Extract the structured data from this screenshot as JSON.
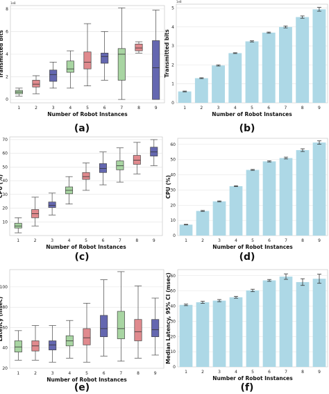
{
  "chart_data": [
    {
      "panel": "(a)",
      "type": "box",
      "xlabel": "Number of Robot Instances",
      "ylabel": "Transmitted bits",
      "y_scale_note": "1e8",
      "ylim": [
        -0.3,
        8.3
      ],
      "yticks": [
        0,
        2,
        4,
        6,
        8
      ],
      "categories": [
        "1",
        "2",
        "3",
        "4",
        "5",
        "6",
        "7",
        "8",
        "9"
      ],
      "colors": [
        "#a8d5a2",
        "#e08a8e",
        "#6467b0",
        "#a8d5a2",
        "#e08a8e",
        "#6467b0",
        "#a8d5a2",
        "#e08a8e",
        "#6467b0"
      ],
      "boxes": [
        {
          "min": 0.3,
          "q1": 0.5,
          "median": 0.65,
          "q3": 0.8,
          "max": 1.0
        },
        {
          "min": 0.5,
          "q1": 1.1,
          "median": 1.35,
          "q3": 1.7,
          "max": 2.1
        },
        {
          "min": 1.0,
          "q1": 1.6,
          "median": 2.2,
          "q3": 2.6,
          "max": 3.3
        },
        {
          "min": 1.0,
          "q1": 2.4,
          "median": 2.7,
          "q3": 3.4,
          "max": 4.3
        },
        {
          "min": 1.2,
          "q1": 2.7,
          "median": 3.3,
          "q3": 4.2,
          "max": 6.7
        },
        {
          "min": 1.7,
          "q1": 3.2,
          "median": 3.8,
          "q3": 4.1,
          "max": 6.0
        },
        {
          "min": 0.0,
          "q1": 1.7,
          "median": 4.0,
          "q3": 4.5,
          "max": 8.1
        },
        {
          "min": 4.1,
          "q1": 4.3,
          "median": 4.55,
          "q3": 4.9,
          "max": 5.1
        },
        {
          "min": 0.0,
          "q1": 0.0,
          "median": 2.8,
          "q3": 5.2,
          "max": 7.9
        }
      ]
    },
    {
      "panel": "(b)",
      "type": "bar",
      "xlabel": "Number of Robot Instances",
      "ylabel": "Transmitted bits",
      "y_scale_note": "1e8",
      "ylim": [
        0,
        5.2
      ],
      "yticks": [
        0,
        1,
        2,
        3,
        4,
        5
      ],
      "categories": [
        "1",
        "2",
        "3",
        "4",
        "5",
        "6",
        "7",
        "8",
        "9"
      ],
      "values": [
        0.6,
        1.3,
        1.97,
        2.62,
        3.24,
        3.7,
        4.0,
        4.52,
        4.93
      ],
      "errors": [
        0.02,
        0.02,
        0.03,
        0.02,
        0.03,
        0.03,
        0.05,
        0.06,
        0.1
      ],
      "bar_color": "#add8e6"
    },
    {
      "panel": "(c)",
      "type": "box",
      "xlabel": "Number of Robot Instances",
      "ylabel": "CPU (%)",
      "ylim": [
        0,
        72
      ],
      "yticks": [
        10,
        20,
        30,
        40,
        50,
        60,
        70
      ],
      "categories": [
        "1",
        "2",
        "3",
        "4",
        "5",
        "6",
        "7",
        "8",
        "9"
      ],
      "colors": [
        "#a8d5a2",
        "#e08a8e",
        "#6467b0",
        "#a8d5a2",
        "#e08a8e",
        "#6467b0",
        "#a8d5a2",
        "#e08a8e",
        "#6467b0"
      ],
      "boxes": [
        {
          "min": 2,
          "q1": 5.5,
          "median": 7,
          "q3": 9,
          "max": 13
        },
        {
          "min": 7,
          "q1": 13,
          "median": 16,
          "q3": 19,
          "max": 28
        },
        {
          "min": 15,
          "q1": 20.5,
          "median": 22,
          "q3": 24.5,
          "max": 31
        },
        {
          "min": 23,
          "q1": 30.5,
          "median": 33,
          "q3": 35.5,
          "max": 43
        },
        {
          "min": 33,
          "q1": 41,
          "median": 43,
          "q3": 46,
          "max": 53
        },
        {
          "min": 37,
          "q1": 46,
          "median": 49,
          "q3": 52.5,
          "max": 61
        },
        {
          "min": 39,
          "q1": 48,
          "median": 51,
          "q3": 54.5,
          "max": 64
        },
        {
          "min": 45,
          "q1": 52,
          "median": 55,
          "q3": 58.5,
          "max": 68
        },
        {
          "min": 51,
          "q1": 58,
          "median": 61,
          "q3": 64.5,
          "max": 70
        }
      ]
    },
    {
      "panel": "(d)",
      "type": "bar",
      "xlabel": "Number of Robot Instances",
      "ylabel": "CPU (%)",
      "ylim": [
        0,
        64
      ],
      "yticks": [
        0,
        10,
        20,
        30,
        40,
        50,
        60
      ],
      "categories": [
        "1",
        "2",
        "3",
        "4",
        "5",
        "6",
        "7",
        "8",
        "9"
      ],
      "values": [
        7.2,
        16.2,
        22.5,
        32.5,
        43.2,
        48.8,
        51.0,
        56.2,
        61.2
      ],
      "errors": [
        0.2,
        0.3,
        0.3,
        0.3,
        0.3,
        0.4,
        0.6,
        0.9,
        1.1
      ],
      "bar_color": "#add8e6"
    },
    {
      "panel": "(e)",
      "type": "box",
      "xlabel": "Number of Robot Instances",
      "ylabel": "Latency (msec)",
      "ylim": [
        20,
        117
      ],
      "yticks": [
        20,
        40,
        60,
        80,
        100
      ],
      "categories": [
        "1",
        "2",
        "3",
        "4",
        "5",
        "6",
        "7",
        "8",
        "9"
      ],
      "colors": [
        "#a8d5a2",
        "#e08a8e",
        "#6467b0",
        "#a8d5a2",
        "#e08a8e",
        "#6467b0",
        "#a8d5a2",
        "#e08a8e",
        "#6467b0"
      ],
      "boxes": [
        {
          "min": 28,
          "q1": 36,
          "median": 41,
          "q3": 47,
          "max": 57
        },
        {
          "min": 28,
          "q1": 37,
          "median": 42,
          "q3": 47,
          "max": 62
        },
        {
          "min": 26,
          "q1": 38,
          "median": 43,
          "q3": 47,
          "max": 62
        },
        {
          "min": 30,
          "q1": 42,
          "median": 47,
          "q3": 52,
          "max": 67
        },
        {
          "min": 26,
          "q1": 43,
          "median": 50,
          "q3": 59,
          "max": 84
        },
        {
          "min": 32,
          "q1": 51,
          "median": 59,
          "q3": 72,
          "max": 107
        },
        {
          "min": 27,
          "q1": 49,
          "median": 59,
          "q3": 76,
          "max": 115
        },
        {
          "min": 30,
          "q1": 47,
          "median": 56,
          "q3": 68,
          "max": 101
        },
        {
          "min": 33,
          "q1": 51,
          "median": 58,
          "q3": 68,
          "max": 89
        }
      ]
    },
    {
      "panel": "(f)",
      "type": "bar",
      "xlabel": "Number of Robot Instances",
      "ylabel": "Median Latency, 95% CI (msec)",
      "ylim": [
        0,
        64
      ],
      "yticks": [
        0,
        10,
        20,
        30,
        40,
        50,
        60
      ],
      "categories": [
        "1",
        "2",
        "3",
        "4",
        "5",
        "6",
        "7",
        "8",
        "9"
      ],
      "values": [
        40.8,
        42.5,
        43.6,
        45.8,
        50.3,
        56.9,
        59.4,
        55.8,
        58.0
      ],
      "errors": [
        0.5,
        0.7,
        0.7,
        0.6,
        0.8,
        0.6,
        1.8,
        2.2,
        3.0
      ],
      "bar_color": "#add8e6"
    }
  ],
  "panel_labels": [
    "(a)",
    "(b)",
    "(c)",
    "(d)",
    "(e)",
    "(f)"
  ]
}
